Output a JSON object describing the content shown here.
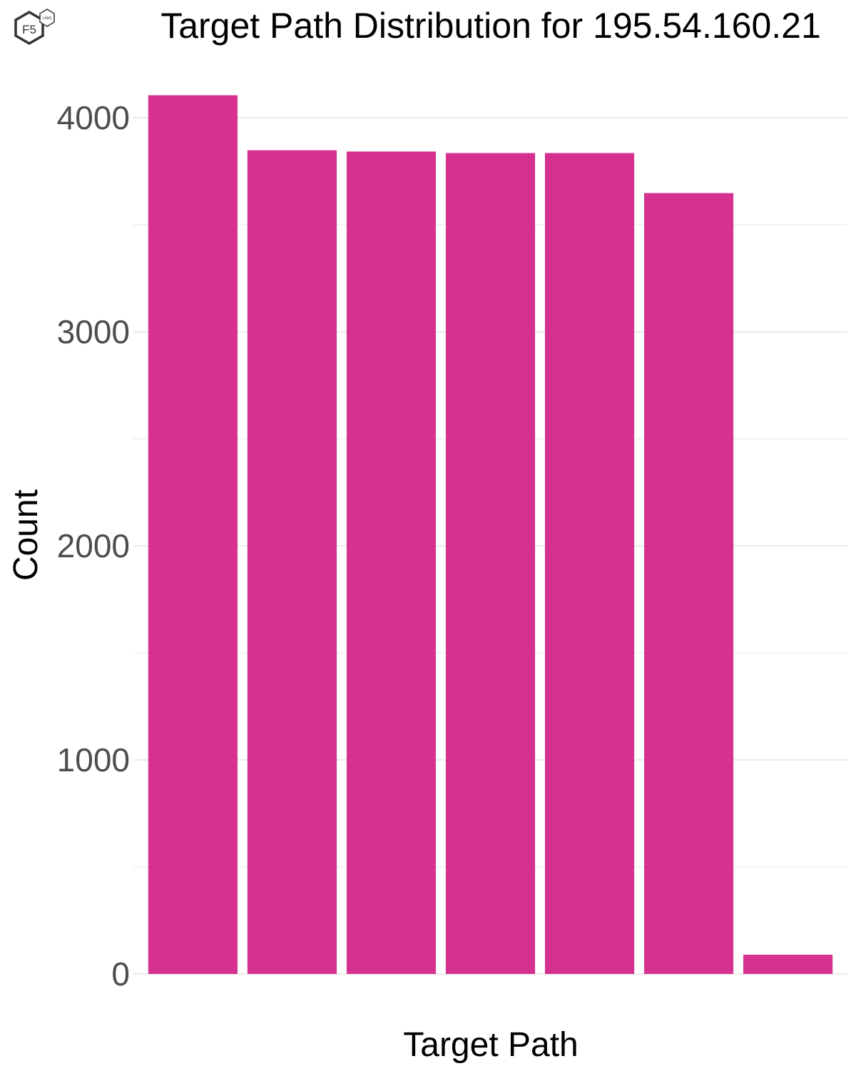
{
  "logo": {
    "main": "F5",
    "sub": "LABS"
  },
  "chart_data": {
    "type": "bar",
    "title": "Target Path Distribution for 195.54.160.21",
    "xlabel": "Target Path",
    "ylabel": "Count",
    "categories": [
      "",
      "",
      "",
      "",
      "",
      "",
      ""
    ],
    "values": [
      4105,
      3848,
      3842,
      3835,
      3835,
      3648,
      90
    ],
    "ylim": [
      0,
      4250
    ],
    "yticks": [
      0,
      1000,
      2000,
      3000,
      4000
    ],
    "ytick_labels": [
      "0",
      "1000",
      "2000",
      "3000",
      "4000"
    ],
    "minor_gridlines": [
      500,
      1500,
      2500,
      3500
    ],
    "grid": true,
    "bar_color": "#D6318F",
    "grid_color": "#EBEBEB"
  }
}
